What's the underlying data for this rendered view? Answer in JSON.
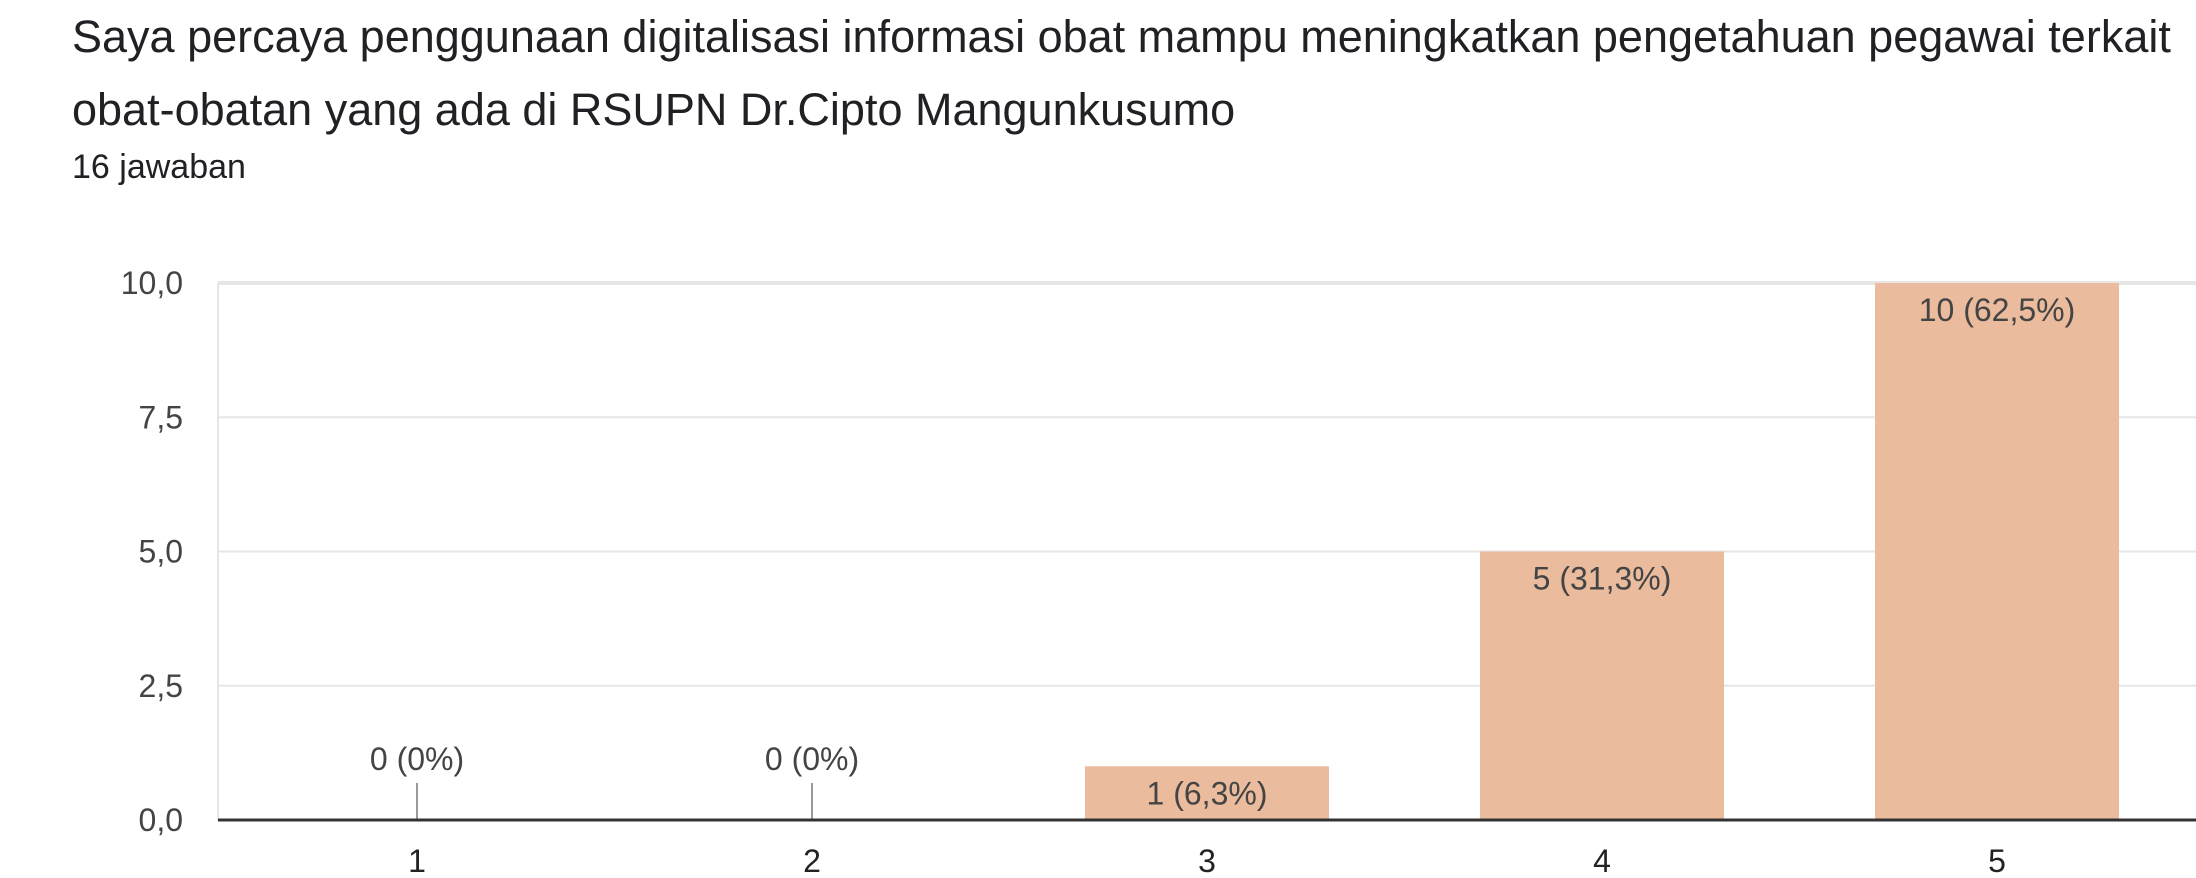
{
  "question": {
    "text": "Saya percaya penggunaan digitalisasi informasi obat mampu  meningkatkan pengetahuan pegawai terkait obat-obatan yang ada di RSUPN Dr.Cipto Mangunkusumo",
    "response_count": "16 jawaban"
  },
  "chart_data": {
    "type": "bar",
    "title": "",
    "xlabel": "",
    "ylabel": "",
    "categories": [
      "1",
      "2",
      "3",
      "4",
      "5"
    ],
    "values": [
      0,
      0,
      1,
      5,
      10
    ],
    "data_labels": [
      "0 (0%)",
      "0 (0%)",
      "1 (6,3%)",
      "5 (31,3%)",
      "10 (62,5%)"
    ],
    "ylim": [
      0,
      10
    ],
    "yticks": [
      0,
      2.5,
      5,
      7.5,
      10
    ],
    "ytick_labels": [
      "0,0",
      "2,5",
      "5,0",
      "7,5",
      "10,0"
    ],
    "grid": true,
    "legend": "none",
    "bar_color": "#ebbb9e",
    "grid_color": "#e6e6e6",
    "axis_color": "#333333",
    "zero_marker_color": "#999999"
  }
}
